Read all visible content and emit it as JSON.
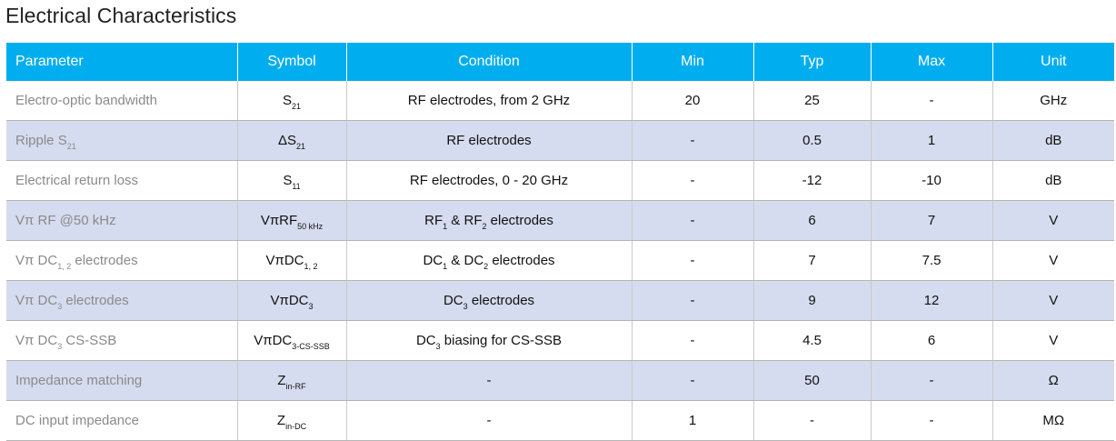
{
  "title": "Electrical Characteristics",
  "headers": [
    "Parameter",
    "Symbol",
    "Condition",
    "Min",
    "Typ",
    "Max",
    "Unit"
  ],
  "rows": [
    {
      "param": {
        "a": "Electro-optic bandwidth",
        "s": "",
        "b": ""
      },
      "symbol": {
        "a": "S",
        "s": "21",
        "b": ""
      },
      "condition": {
        "a": "RF electrodes, from 2 GHz",
        "s1": "",
        "b": "",
        "s2": "",
        "c": ""
      },
      "min": "20",
      "typ": "25",
      "max": "-",
      "unit": "GHz"
    },
    {
      "param": {
        "a": "Ripple S",
        "s": "21",
        "b": ""
      },
      "symbol": {
        "a": "ΔS",
        "s": "21",
        "b": ""
      },
      "condition": {
        "a": "RF electrodes",
        "s1": "",
        "b": "",
        "s2": "",
        "c": ""
      },
      "min": "-",
      "typ": "0.5",
      "max": "1",
      "unit": "dB"
    },
    {
      "param": {
        "a": "Electrical return loss",
        "s": "",
        "b": ""
      },
      "symbol": {
        "a": "S",
        "s": "11",
        "b": ""
      },
      "condition": {
        "a": "RF electrodes, 0 - 20 GHz",
        "s1": "",
        "b": "",
        "s2": "",
        "c": ""
      },
      "min": "-",
      "typ": "-12",
      "max": "-10",
      "unit": "dB"
    },
    {
      "param": {
        "a": "Vπ RF @50 kHz",
        "s": "",
        "b": ""
      },
      "symbol": {
        "a": "VπRF",
        "s": "50 kHz",
        "b": ""
      },
      "condition": {
        "a": "RF",
        "s1": "1",
        "b": " & RF",
        "s2": "2",
        "c": " electrodes"
      },
      "min": "-",
      "typ": "6",
      "max": "7",
      "unit": "V"
    },
    {
      "param": {
        "a": "Vπ DC",
        "s": "1, 2",
        "b": " electrodes"
      },
      "symbol": {
        "a": "VπDC",
        "s": "1, 2",
        "b": ""
      },
      "condition": {
        "a": "DC",
        "s1": "1",
        "b": " & DC",
        "s2": "2",
        "c": " electrodes"
      },
      "min": "-",
      "typ": "7",
      "max": "7.5",
      "unit": "V"
    },
    {
      "param": {
        "a": "Vπ DC",
        "s": "3",
        "b": " electrodes"
      },
      "symbol": {
        "a": "VπDC",
        "s": "3",
        "b": ""
      },
      "condition": {
        "a": "DC",
        "s1": "3",
        "b": " electrodes",
        "s2": "",
        "c": ""
      },
      "min": "-",
      "typ": "9",
      "max": "12",
      "unit": "V"
    },
    {
      "param": {
        "a": "Vπ DC",
        "s": "3",
        "b": " CS-SSB"
      },
      "symbol": {
        "a": "VπDC",
        "s": "3-CS-SSB",
        "b": ""
      },
      "condition": {
        "a": "DC",
        "s1": "3",
        "b": " biasing for CS-SSB",
        "s2": "",
        "c": ""
      },
      "min": "-",
      "typ": "4.5",
      "max": "6",
      "unit": "V"
    },
    {
      "param": {
        "a": "Impedance matching",
        "s": "",
        "b": ""
      },
      "symbol": {
        "a": "Z",
        "s": "in-RF",
        "b": ""
      },
      "condition": {
        "a": "-",
        "s1": "",
        "b": "",
        "s2": "",
        "c": ""
      },
      "min": "-",
      "typ": "50",
      "max": "-",
      "unit": "Ω"
    },
    {
      "param": {
        "a": "DC input impedance",
        "s": "",
        "b": ""
      },
      "symbol": {
        "a": "Z",
        "s": "in-DC",
        "b": ""
      },
      "condition": {
        "a": "-",
        "s1": "",
        "b": "",
        "s2": "",
        "c": ""
      },
      "min": "1",
      "typ": "-",
      "max": "-",
      "unit": "MΩ"
    }
  ]
}
